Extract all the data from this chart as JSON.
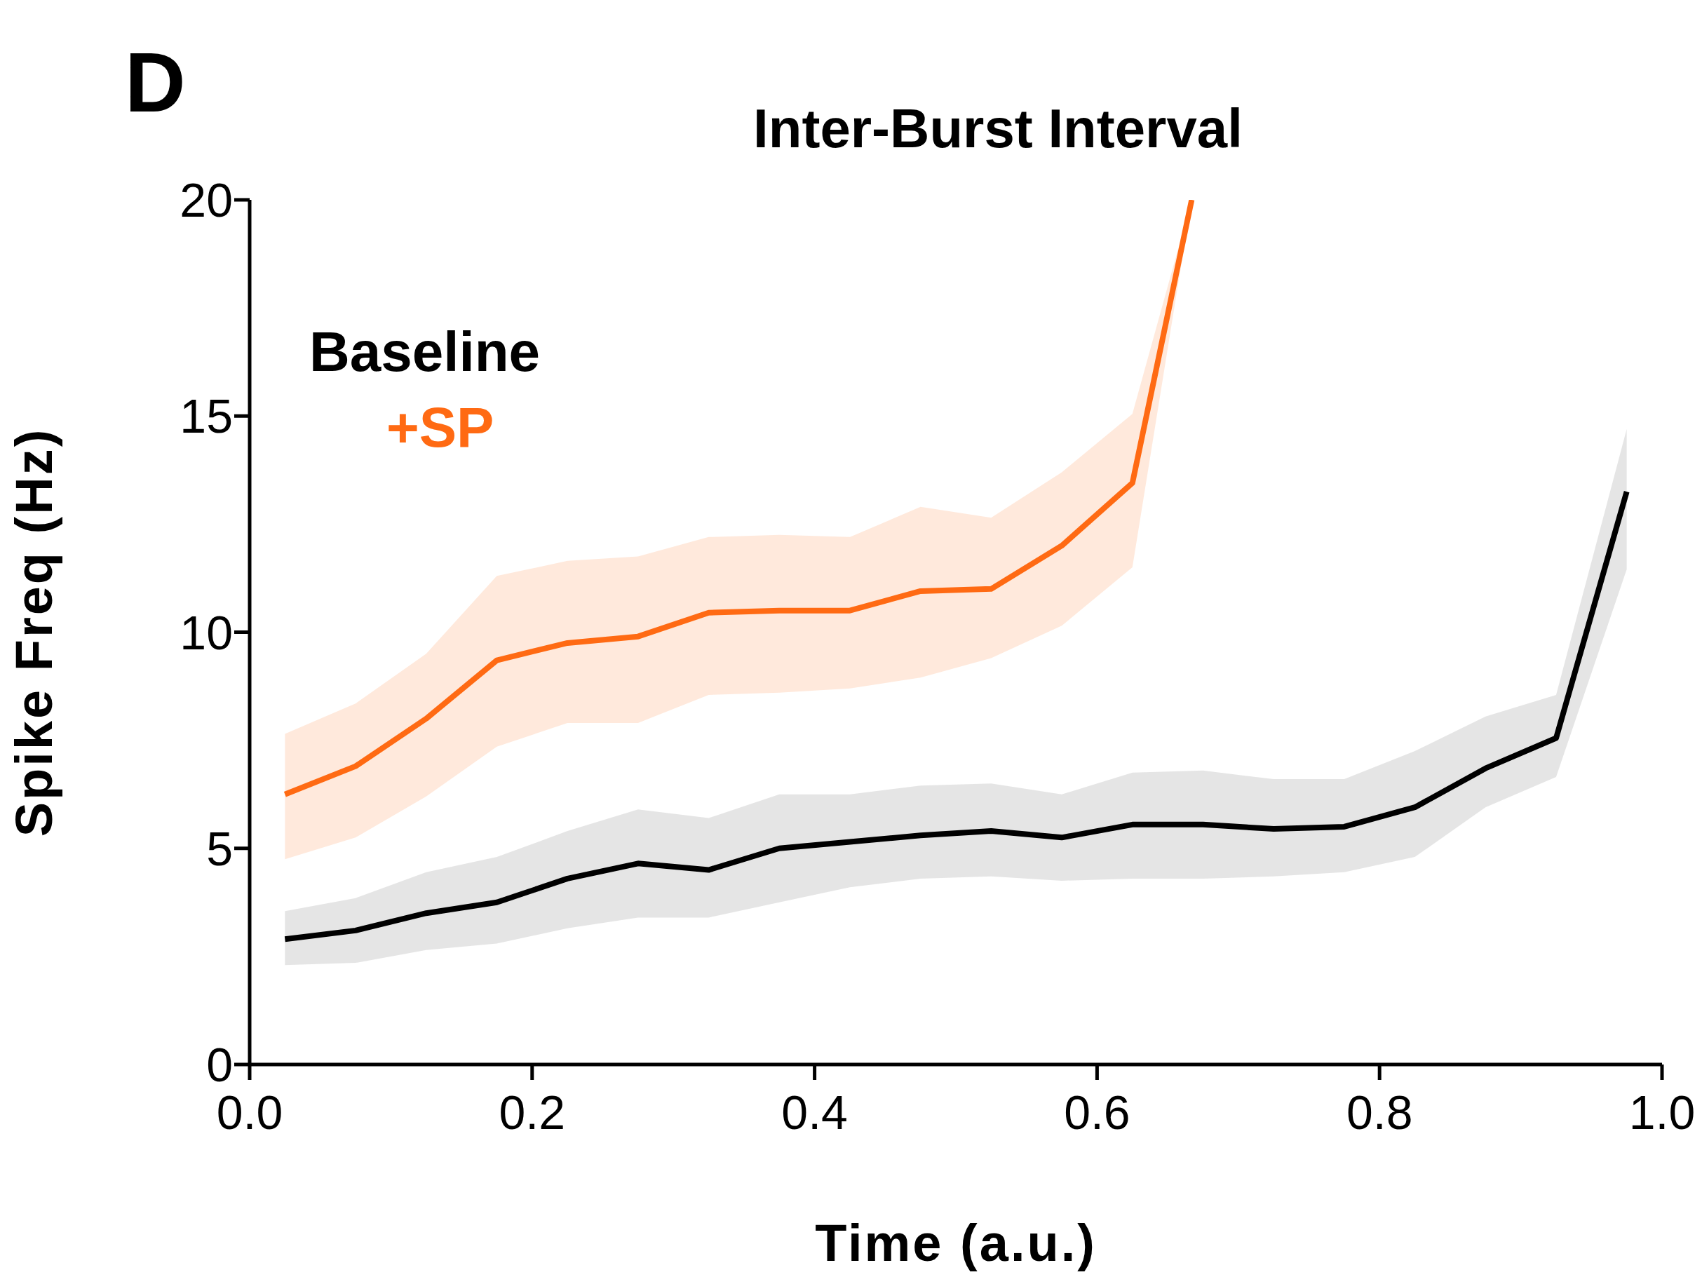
{
  "chart_data": {
    "type": "line",
    "title": "Inter-Burst Interval",
    "xlabel": "Time (a.u.)",
    "ylabel": "Spike Freq (Hz)",
    "annotations": [
      "D"
    ],
    "xlim": [
      0,
      1
    ],
    "xticks": [
      {
        "value": 0,
        "label": "0.0"
      },
      {
        "value": 0.2,
        "label": "0.2"
      },
      {
        "value": 0.4,
        "label": "0.4"
      },
      {
        "value": 0.6,
        "label": "0.6"
      },
      {
        "value": 0.8,
        "label": "0.8"
      },
      {
        "value": 1,
        "label": "1.0"
      }
    ],
    "ylim": [
      0,
      20
    ],
    "yticks": [
      0,
      5,
      10,
      15,
      20
    ],
    "grid": false,
    "legend": "top left",
    "marker": "none",
    "line_style": "solid",
    "series": [
      {
        "name": "Baseline",
        "color": "#000000",
        "x": [
          0.025,
          0.075,
          0.125,
          0.175,
          0.225,
          0.275,
          0.325,
          0.375,
          0.425,
          0.475,
          0.525,
          0.575,
          0.625,
          0.675,
          0.725,
          0.775,
          0.825,
          0.875,
          0.925,
          0.975
        ],
        "values": [
          2.9,
          3.1,
          3.5,
          3.75,
          4.3,
          4.65,
          4.5,
          5.0,
          5.15,
          5.3,
          5.4,
          5.25,
          5.55,
          5.55,
          5.45,
          5.5,
          5.95,
          6.85,
          7.55,
          13.25
        ],
        "lower": [
          2.3,
          2.35,
          2.65,
          2.8,
          3.15,
          3.4,
          3.4,
          3.75,
          4.1,
          4.3,
          4.35,
          4.25,
          4.3,
          4.3,
          4.35,
          4.45,
          4.8,
          5.95,
          6.65,
          11.45
        ],
        "upper": [
          3.55,
          3.85,
          4.45,
          4.8,
          5.4,
          5.9,
          5.7,
          6.25,
          6.25,
          6.45,
          6.5,
          6.25,
          6.75,
          6.8,
          6.6,
          6.6,
          7.25,
          8.05,
          8.55,
          14.7
        ]
      },
      {
        "name": "+SP",
        "color": "#ff6a13",
        "x": [
          0.025,
          0.075,
          0.125,
          0.175,
          0.225,
          0.275,
          0.325,
          0.375,
          0.425,
          0.475,
          0.525,
          0.575,
          0.625,
          0.667
        ],
        "values": [
          6.25,
          6.9,
          8.0,
          9.35,
          9.75,
          9.9,
          10.45,
          10.5,
          10.5,
          10.95,
          11.0,
          12.0,
          13.45,
          20
        ],
        "lower": [
          4.75,
          5.25,
          6.2,
          7.35,
          7.9,
          7.9,
          8.55,
          8.6,
          8.7,
          8.95,
          9.4,
          10.15,
          11.5,
          20
        ],
        "upper": [
          7.65,
          8.35,
          9.5,
          11.3,
          11.65,
          11.75,
          12.2,
          12.25,
          12.2,
          12.9,
          12.65,
          13.7,
          15.05,
          20
        ]
      }
    ]
  }
}
